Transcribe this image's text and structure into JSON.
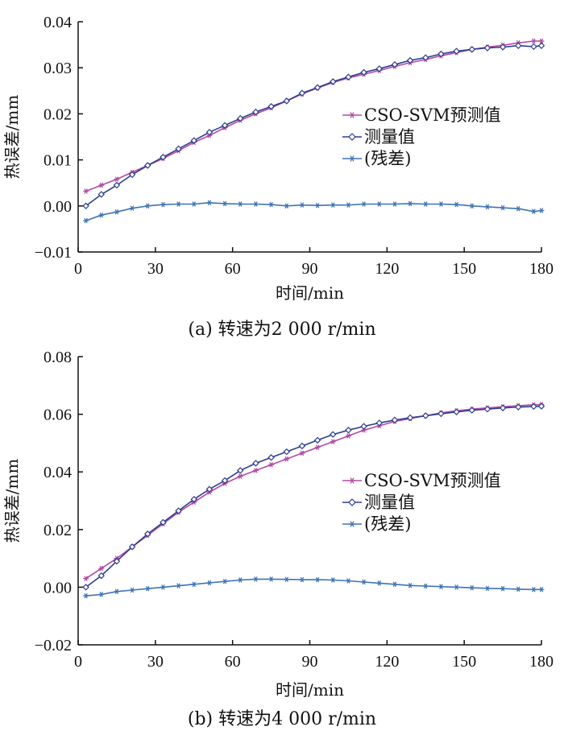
{
  "colors": {
    "predicted": "#b34aa6",
    "measured": "#2d3e8f",
    "residual": "#3f73b5",
    "axis": "#111111"
  },
  "chart_data": [
    {
      "type": "line",
      "caption": "(a)  转速为2 000 r/min",
      "xlabel": "时间/min",
      "ylabel": "热误差/mm",
      "xlim": [
        0,
        180
      ],
      "ylim": [
        -0.01,
        0.04
      ],
      "xticks": [
        0,
        30,
        60,
        90,
        120,
        150,
        180
      ],
      "xtick_labels": [
        "0",
        "30",
        "60",
        "90",
        "120",
        "150",
        "180"
      ],
      "yticks": [
        -0.01,
        0.0,
        0.01,
        0.02,
        0.03,
        0.04
      ],
      "ytick_labels": [
        "−0.01",
        "0.00",
        "0.01",
        "0.02",
        "0.03",
        "0.04"
      ],
      "legend_position": "middle-right",
      "series": [
        {
          "name": "CSO-SVM预测值",
          "color_key": "predicted",
          "marker": "star",
          "x": [
            3,
            9,
            15,
            21,
            27,
            33,
            39,
            45,
            51,
            57,
            63,
            69,
            75,
            81,
            87,
            93,
            99,
            105,
            111,
            117,
            123,
            129,
            135,
            141,
            147,
            153,
            159,
            165,
            171,
            177,
            180
          ],
          "y": [
            0.0032,
            0.0045,
            0.0058,
            0.0073,
            0.0088,
            0.0103,
            0.012,
            0.0138,
            0.0153,
            0.017,
            0.0186,
            0.02,
            0.0213,
            0.0228,
            0.0243,
            0.0256,
            0.0268,
            0.0278,
            0.0286,
            0.0294,
            0.0303,
            0.0311,
            0.0318,
            0.0326,
            0.0333,
            0.034,
            0.0345,
            0.0349,
            0.0354,
            0.0358,
            0.0358
          ]
        },
        {
          "name": "测量值",
          "color_key": "measured",
          "marker": "diamond",
          "x": [
            3,
            9,
            15,
            21,
            27,
            33,
            39,
            45,
            51,
            57,
            63,
            69,
            75,
            81,
            87,
            93,
            99,
            105,
            111,
            117,
            123,
            129,
            135,
            141,
            147,
            153,
            159,
            165,
            171,
            177,
            180
          ],
          "y": [
            0.0,
            0.0025,
            0.0045,
            0.0068,
            0.0088,
            0.0106,
            0.0124,
            0.0142,
            0.016,
            0.0175,
            0.019,
            0.0204,
            0.0216,
            0.0228,
            0.0245,
            0.0257,
            0.027,
            0.028,
            0.029,
            0.0298,
            0.0307,
            0.0316,
            0.0322,
            0.033,
            0.0336,
            0.034,
            0.0343,
            0.0345,
            0.0348,
            0.0346,
            0.0348
          ]
        },
        {
          "name": "(残差)",
          "color_key": "residual",
          "marker": "star",
          "x": [
            3,
            9,
            15,
            21,
            27,
            33,
            39,
            45,
            51,
            57,
            63,
            69,
            75,
            81,
            87,
            93,
            99,
            105,
            111,
            117,
            123,
            129,
            135,
            141,
            147,
            153,
            159,
            165,
            171,
            177,
            180
          ],
          "y": [
            -0.0032,
            -0.002,
            -0.0013,
            -0.0005,
            0.0,
            0.0003,
            0.0004,
            0.0004,
            0.0007,
            0.0005,
            0.0004,
            0.0004,
            0.0003,
            0.0,
            0.0002,
            0.0001,
            0.0002,
            0.0002,
            0.0004,
            0.0004,
            0.0004,
            0.0005,
            0.0004,
            0.0004,
            0.0003,
            0.0,
            -0.0002,
            -0.0004,
            -0.0006,
            -0.0012,
            -0.001
          ]
        }
      ]
    },
    {
      "type": "line",
      "caption": "(b)  转速为4 000 r/min",
      "xlabel": "时间/min",
      "ylabel": "热误差/mm",
      "xlim": [
        0,
        180
      ],
      "ylim": [
        -0.02,
        0.08
      ],
      "xticks": [
        0,
        30,
        60,
        90,
        120,
        150,
        180
      ],
      "xtick_labels": [
        "0",
        "30",
        "60",
        "90",
        "120",
        "150",
        "180"
      ],
      "yticks": [
        -0.02,
        0.0,
        0.02,
        0.04,
        0.06,
        0.08
      ],
      "ytick_labels": [
        "−0.02",
        "0.00",
        "0.02",
        "0.04",
        "0.06",
        "0.08"
      ],
      "legend_position": "middle-right",
      "series": [
        {
          "name": "CSO-SVM预测值",
          "color_key": "predicted",
          "marker": "star",
          "x": [
            3,
            9,
            15,
            21,
            27,
            33,
            39,
            45,
            51,
            57,
            63,
            69,
            75,
            81,
            87,
            93,
            99,
            105,
            111,
            117,
            123,
            129,
            135,
            141,
            147,
            153,
            159,
            165,
            171,
            177,
            180
          ],
          "y": [
            0.003,
            0.0065,
            0.01,
            0.014,
            0.018,
            0.022,
            0.026,
            0.0295,
            0.033,
            0.036,
            0.0385,
            0.0405,
            0.0425,
            0.0445,
            0.0465,
            0.0485,
            0.0505,
            0.0525,
            0.0545,
            0.056,
            0.0575,
            0.0585,
            0.0595,
            0.0605,
            0.0612,
            0.0618,
            0.0622,
            0.0626,
            0.063,
            0.0633,
            0.0634
          ]
        },
        {
          "name": "测量值",
          "color_key": "measured",
          "marker": "diamond",
          "x": [
            3,
            9,
            15,
            21,
            27,
            33,
            39,
            45,
            51,
            57,
            63,
            69,
            75,
            81,
            87,
            93,
            99,
            105,
            111,
            117,
            123,
            129,
            135,
            141,
            147,
            153,
            159,
            165,
            171,
            177,
            180
          ],
          "y": [
            0.0,
            0.004,
            0.009,
            0.014,
            0.0185,
            0.0225,
            0.0265,
            0.0305,
            0.034,
            0.037,
            0.0405,
            0.043,
            0.045,
            0.047,
            0.049,
            0.051,
            0.053,
            0.0545,
            0.0558,
            0.057,
            0.058,
            0.0588,
            0.0595,
            0.0602,
            0.0608,
            0.0614,
            0.0618,
            0.0622,
            0.0625,
            0.0627,
            0.0628
          ]
        },
        {
          "name": "(残差)",
          "color_key": "residual",
          "marker": "star",
          "x": [
            3,
            9,
            15,
            21,
            27,
            33,
            39,
            45,
            51,
            57,
            63,
            69,
            75,
            81,
            87,
            93,
            99,
            105,
            111,
            117,
            123,
            129,
            135,
            141,
            147,
            153,
            159,
            165,
            171,
            177,
            180
          ],
          "y": [
            -0.003,
            -0.0025,
            -0.0015,
            -0.001,
            -0.0005,
            0.0,
            0.0005,
            0.001,
            0.0015,
            0.002,
            0.0025,
            0.0028,
            0.0028,
            0.0027,
            0.0026,
            0.0026,
            0.0025,
            0.0022,
            0.0018,
            0.0014,
            0.001,
            0.0006,
            0.0004,
            0.0002,
            0.0,
            -0.0002,
            -0.0004,
            -0.0005,
            -0.0007,
            -0.0008,
            -0.0008
          ]
        }
      ]
    }
  ]
}
